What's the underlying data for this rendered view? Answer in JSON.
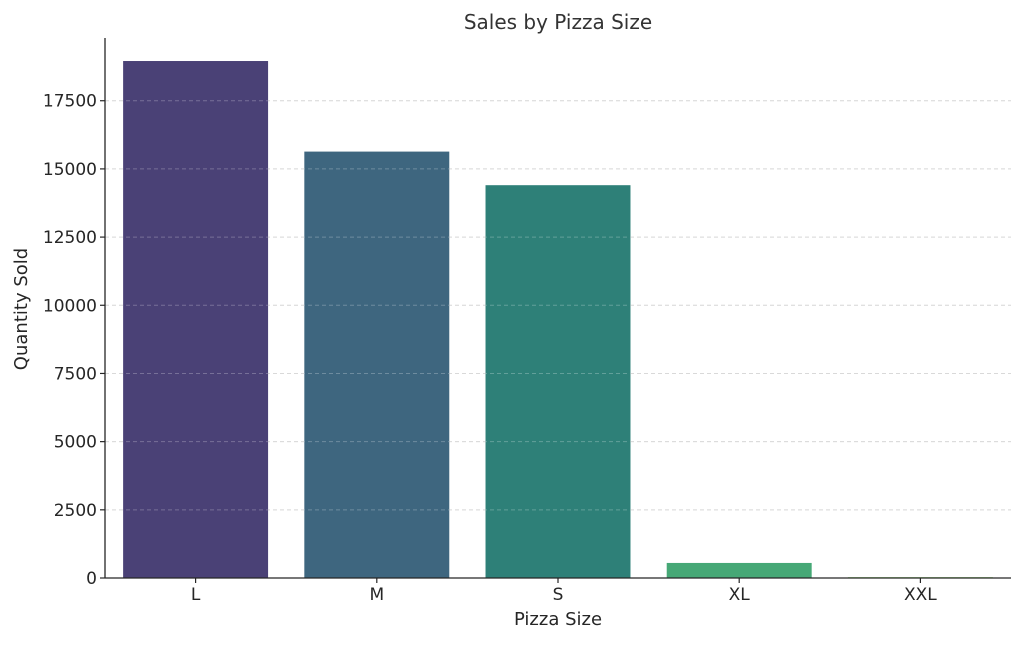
{
  "chart_data": {
    "type": "bar",
    "title": "Sales by Pizza Size",
    "xlabel": "Pizza Size",
    "ylabel": "Quantity Sold",
    "categories": [
      "L",
      "M",
      "S",
      "XL",
      "XXL"
    ],
    "values": [
      18956,
      15635,
      14403,
      552,
      28
    ],
    "colors": [
      "#4a4176",
      "#3e667f",
      "#2e8078",
      "#46a876",
      "#7ad151"
    ],
    "ylim": [
      0,
      19800
    ],
    "yticks": [
      0,
      2500,
      5000,
      7500,
      10000,
      12500,
      15000,
      17500
    ],
    "grid": true,
    "legend": "none"
  }
}
